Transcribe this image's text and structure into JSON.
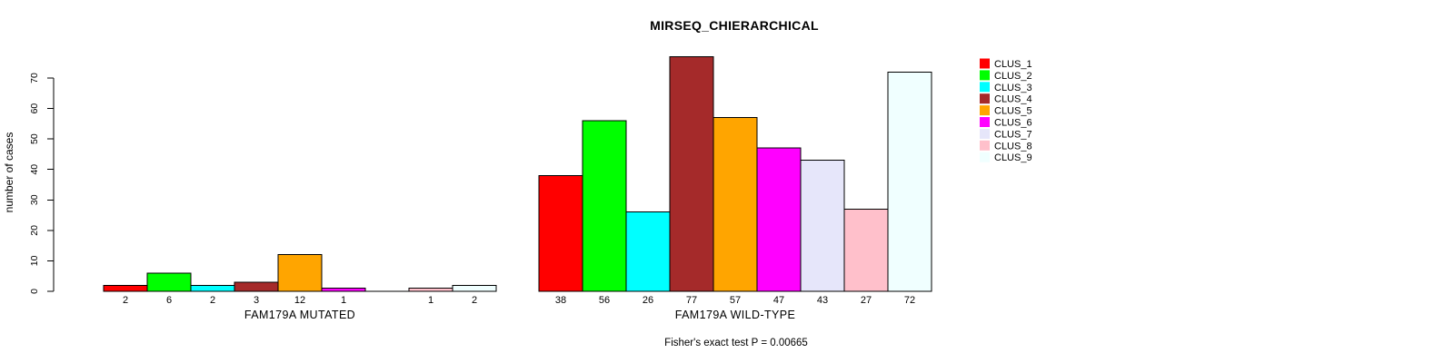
{
  "figure": {
    "title": "MIRSEQ_CHIERARCHICAL",
    "footer": "Fisher's exact test P = 0.00665"
  },
  "chart_data": {
    "type": "bar",
    "title": "MIRSEQ_CHIERARCHICAL",
    "xlabel": "",
    "ylabel": "number of cases",
    "ylim": [
      0,
      70
    ],
    "yticks": [
      0,
      10,
      20,
      30,
      40,
      50,
      60,
      70
    ],
    "grid": false,
    "legend_position": "right",
    "annotation": "Fisher's exact test P = 0.00665",
    "clusters": [
      {
        "name": "CLUS_1",
        "color": "#FF0000",
        "mutated": 2,
        "wild_type": 38
      },
      {
        "name": "CLUS_2",
        "color": "#00FF00",
        "mutated": 6,
        "wild_type": 56
      },
      {
        "name": "CLUS_3",
        "color": "#00FFFF",
        "mutated": 2,
        "wild_type": 26
      },
      {
        "name": "CLUS_4",
        "color": "#A52A2A",
        "mutated": 3,
        "wild_type": 77
      },
      {
        "name": "CLUS_5",
        "color": "#FFA500",
        "mutated": 12,
        "wild_type": 57
      },
      {
        "name": "CLUS_6",
        "color": "#FF00FF",
        "mutated": 1,
        "wild_type": 47
      },
      {
        "name": "CLUS_7",
        "color": "#E6E6FA",
        "mutated": 0,
        "wild_type": 43
      },
      {
        "name": "CLUS_8",
        "color": "#FFC0CB",
        "mutated": 1,
        "wild_type": 27
      },
      {
        "name": "CLUS_9",
        "color": "#F0FFFF",
        "mutated": 2,
        "wild_type": 72
      }
    ],
    "groups": [
      {
        "label": "FAM179A MUTATED",
        "key": "mutated",
        "bar_labels": [
          "2",
          "6",
          "2",
          "3",
          "12",
          "1",
          "",
          "1",
          "2"
        ]
      },
      {
        "label": "FAM179A WILD-TYPE",
        "key": "wild_type",
        "bar_labels": [
          "38",
          "56",
          "26",
          "77",
          "57",
          "47",
          "43",
          "27",
          "72"
        ]
      }
    ]
  }
}
